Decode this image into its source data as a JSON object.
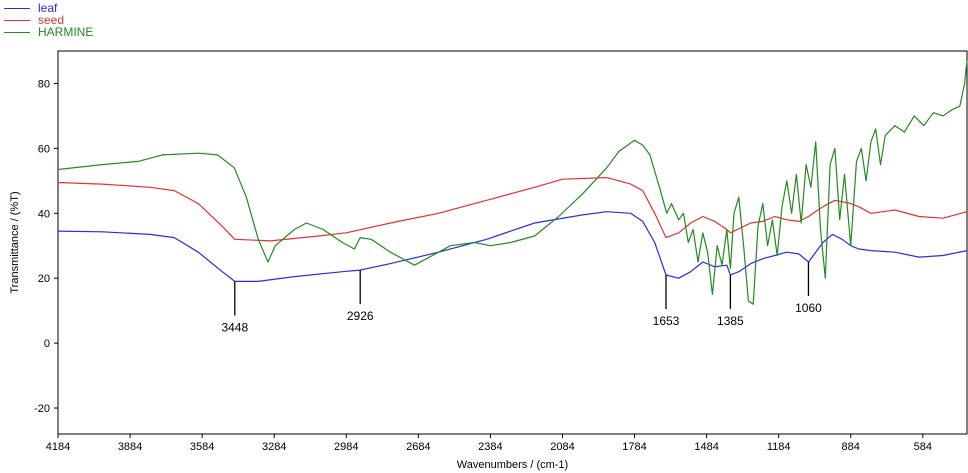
{
  "chart_data": {
    "type": "line",
    "title": "",
    "xlabel": "Wavenumbers / (cm-1)",
    "ylabel": "Transmittance / (%T)",
    "xlim": [
      4184,
      400
    ],
    "ylim": [
      -28,
      90
    ],
    "x_reversed": true,
    "x_ticks": [
      "4184",
      "3884",
      "3584",
      "3284",
      "2984",
      "2684",
      "2384",
      "2084",
      "1784",
      "1484",
      "1184",
      "884",
      "584"
    ],
    "y_ticks": [
      "80",
      "60",
      "40",
      "20",
      "0",
      "-20"
    ],
    "grid": false,
    "legend_position": "top-left",
    "series": [
      {
        "name": "leaf",
        "color": "#2a2af0",
        "points": [
          [
            4184,
            34.5
          ],
          [
            4000,
            34.3
          ],
          [
            3800,
            33.5
          ],
          [
            3700,
            32.5
          ],
          [
            3600,
            28
          ],
          [
            3500,
            22
          ],
          [
            3448,
            19
          ],
          [
            3350,
            19
          ],
          [
            3200,
            20.5
          ],
          [
            3000,
            22
          ],
          [
            2926,
            22.5
          ],
          [
            2800,
            24.5
          ],
          [
            2600,
            28
          ],
          [
            2400,
            32
          ],
          [
            2200,
            37
          ],
          [
            2000,
            39.5
          ],
          [
            1900,
            40.5
          ],
          [
            1800,
            40
          ],
          [
            1750,
            37.5
          ],
          [
            1700,
            31
          ],
          [
            1653,
            21
          ],
          [
            1600,
            20
          ],
          [
            1550,
            22
          ],
          [
            1500,
            25
          ],
          [
            1450,
            23.5
          ],
          [
            1400,
            24
          ],
          [
            1385,
            21
          ],
          [
            1350,
            22
          ],
          [
            1300,
            24.5
          ],
          [
            1250,
            26
          ],
          [
            1200,
            27
          ],
          [
            1150,
            28
          ],
          [
            1100,
            27.5
          ],
          [
            1060,
            25
          ],
          [
            1000,
            31
          ],
          [
            960,
            33.5
          ],
          [
            920,
            32
          ],
          [
            884,
            30
          ],
          [
            850,
            29
          ],
          [
            800,
            28.5
          ],
          [
            700,
            28
          ],
          [
            600,
            26.5
          ],
          [
            500,
            27
          ],
          [
            400,
            28.5
          ]
        ]
      },
      {
        "name": "seed",
        "color": "#e83030",
        "points": [
          [
            4184,
            49.5
          ],
          [
            4000,
            49
          ],
          [
            3800,
            48
          ],
          [
            3700,
            47
          ],
          [
            3600,
            43
          ],
          [
            3500,
            36
          ],
          [
            3448,
            32
          ],
          [
            3300,
            31.5
          ],
          [
            3100,
            33
          ],
          [
            2984,
            34
          ],
          [
            2800,
            37
          ],
          [
            2600,
            40
          ],
          [
            2400,
            44
          ],
          [
            2200,
            48
          ],
          [
            2084,
            50.5
          ],
          [
            1900,
            51
          ],
          [
            1800,
            49
          ],
          [
            1750,
            47
          ],
          [
            1700,
            40
          ],
          [
            1653,
            32.5
          ],
          [
            1600,
            34
          ],
          [
            1550,
            37
          ],
          [
            1500,
            39
          ],
          [
            1450,
            37.5
          ],
          [
            1400,
            35
          ],
          [
            1385,
            34
          ],
          [
            1300,
            37
          ],
          [
            1250,
            37.5
          ],
          [
            1200,
            39
          ],
          [
            1150,
            38
          ],
          [
            1100,
            37.5
          ],
          [
            1060,
            39
          ],
          [
            1000,
            42
          ],
          [
            950,
            44
          ],
          [
            884,
            43
          ],
          [
            850,
            42
          ],
          [
            800,
            40
          ],
          [
            700,
            41
          ],
          [
            600,
            39
          ],
          [
            500,
            38.5
          ],
          [
            400,
            40.5
          ]
        ]
      },
      {
        "name": "HARMINE",
        "color": "#228b22",
        "points": [
          [
            4184,
            53.5
          ],
          [
            4000,
            55
          ],
          [
            3850,
            56
          ],
          [
            3750,
            58
          ],
          [
            3600,
            58.5
          ],
          [
            3520,
            58
          ],
          [
            3450,
            54
          ],
          [
            3400,
            45
          ],
          [
            3350,
            32
          ],
          [
            3310,
            25
          ],
          [
            3280,
            30
          ],
          [
            3200,
            35
          ],
          [
            3150,
            37
          ],
          [
            3080,
            35
          ],
          [
            3000,
            31
          ],
          [
            2950,
            29
          ],
          [
            2926,
            32.5
          ],
          [
            2880,
            32
          ],
          [
            2800,
            28
          ],
          [
            2700,
            24
          ],
          [
            2650,
            26
          ],
          [
            2550,
            30
          ],
          [
            2450,
            31
          ],
          [
            2384,
            30
          ],
          [
            2300,
            31
          ],
          [
            2200,
            33
          ],
          [
            2100,
            39
          ],
          [
            2000,
            46
          ],
          [
            1900,
            54
          ],
          [
            1850,
            59
          ],
          [
            1784,
            62.5
          ],
          [
            1750,
            61
          ],
          [
            1720,
            58
          ],
          [
            1680,
            48
          ],
          [
            1650,
            40
          ],
          [
            1630,
            43
          ],
          [
            1600,
            38
          ],
          [
            1580,
            40
          ],
          [
            1560,
            31
          ],
          [
            1540,
            35
          ],
          [
            1520,
            25
          ],
          [
            1500,
            34
          ],
          [
            1480,
            28
          ],
          [
            1460,
            15
          ],
          [
            1440,
            30
          ],
          [
            1420,
            24
          ],
          [
            1400,
            35
          ],
          [
            1385,
            23
          ],
          [
            1370,
            40
          ],
          [
            1350,
            45
          ],
          [
            1330,
            30
          ],
          [
            1310,
            13
          ],
          [
            1290,
            12
          ],
          [
            1270,
            36
          ],
          [
            1250,
            43
          ],
          [
            1230,
            30
          ],
          [
            1210,
            38
          ],
          [
            1190,
            27
          ],
          [
            1170,
            42
          ],
          [
            1150,
            50
          ],
          [
            1130,
            40
          ],
          [
            1110,
            52
          ],
          [
            1090,
            37
          ],
          [
            1070,
            55
          ],
          [
            1050,
            48
          ],
          [
            1030,
            62
          ],
          [
            1010,
            35
          ],
          [
            990,
            20
          ],
          [
            970,
            55
          ],
          [
            950,
            60
          ],
          [
            930,
            38
          ],
          [
            910,
            52
          ],
          [
            884,
            30
          ],
          [
            860,
            56
          ],
          [
            840,
            60
          ],
          [
            820,
            50
          ],
          [
            800,
            62
          ],
          [
            780,
            66
          ],
          [
            760,
            55
          ],
          [
            740,
            64
          ],
          [
            700,
            67
          ],
          [
            660,
            65
          ],
          [
            620,
            70
          ],
          [
            580,
            67
          ],
          [
            540,
            71
          ],
          [
            500,
            70
          ],
          [
            460,
            72
          ],
          [
            430,
            73
          ],
          [
            410,
            80
          ],
          [
            400,
            87
          ]
        ]
      }
    ],
    "annotations": [
      {
        "label": "3448",
        "x": 3448,
        "y": 19
      },
      {
        "label": "2926",
        "x": 2926,
        "y": 22.5
      },
      {
        "label": "1653",
        "x": 1653,
        "y": 21
      },
      {
        "label": "1385",
        "x": 1385,
        "y": 21
      },
      {
        "label": "1060",
        "x": 1060,
        "y": 25
      }
    ]
  }
}
